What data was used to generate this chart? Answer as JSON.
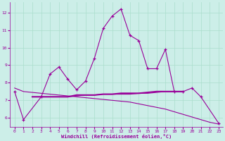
{
  "line_jagged_x": [
    0,
    1,
    3,
    4,
    5,
    6,
    7,
    8,
    9,
    10,
    11,
    12,
    13,
    14,
    15,
    16,
    17,
    18,
    19,
    20,
    21,
    23
  ],
  "line_jagged_y": [
    7.5,
    5.9,
    7.2,
    8.5,
    8.9,
    8.2,
    7.6,
    8.1,
    9.4,
    11.1,
    11.8,
    12.2,
    10.7,
    10.4,
    8.8,
    8.8,
    9.9,
    7.5,
    7.5,
    7.7,
    7.2,
    5.7
  ],
  "line_flat1_x": [
    2,
    3,
    4,
    5,
    6,
    7,
    8,
    9,
    10,
    11,
    12,
    13,
    14,
    15,
    16,
    17,
    18,
    19
  ],
  "line_flat1_y": [
    7.2,
    7.2,
    7.2,
    7.2,
    7.2,
    7.3,
    7.3,
    7.3,
    7.35,
    7.35,
    7.4,
    7.4,
    7.4,
    7.45,
    7.5,
    7.5,
    7.5,
    7.5
  ],
  "line_flat2_x": [
    6,
    7,
    8,
    9,
    10,
    11,
    12,
    13,
    14,
    15,
    16,
    17,
    18,
    19
  ],
  "line_flat2_y": [
    7.2,
    7.25,
    7.3,
    7.3,
    7.35,
    7.35,
    7.35,
    7.35,
    7.4,
    7.4,
    7.45,
    7.5,
    7.5,
    7.5
  ],
  "line_diag_x": [
    0,
    1,
    2,
    3,
    4,
    5,
    6,
    7,
    8,
    9,
    10,
    11,
    12,
    13,
    14,
    15,
    16,
    17,
    18,
    19,
    20,
    21,
    22,
    23
  ],
  "line_diag_y": [
    7.7,
    7.5,
    7.45,
    7.4,
    7.35,
    7.3,
    7.25,
    7.2,
    7.15,
    7.1,
    7.05,
    7.0,
    6.95,
    6.9,
    6.8,
    6.7,
    6.6,
    6.5,
    6.35,
    6.2,
    6.05,
    5.9,
    5.75,
    5.65
  ],
  "color": "#990099",
  "bg_color": "#cceee8",
  "grid_color": "#aaddcc",
  "xlabel": "Windchill (Refroidissement éolien,°C)",
  "xlim": [
    -0.5,
    23.5
  ],
  "ylim": [
    5.5,
    12.6
  ],
  "yticks": [
    6,
    7,
    8,
    9,
    10,
    11,
    12
  ],
  "xticks": [
    0,
    1,
    2,
    3,
    4,
    5,
    6,
    7,
    8,
    9,
    10,
    11,
    12,
    13,
    14,
    15,
    16,
    17,
    18,
    19,
    20,
    21,
    22,
    23
  ]
}
